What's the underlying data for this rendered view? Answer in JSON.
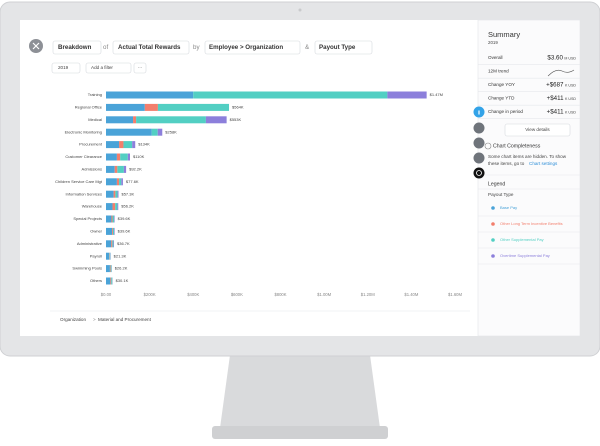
{
  "header": {
    "breakdown": "Breakdown",
    "of": "of",
    "measure": "Actual Total Rewards",
    "by": "by",
    "dimension": "Employee > Organization",
    "and": "&",
    "dimension2": "Payout Type"
  },
  "filters": {
    "year": "2019",
    "add": "Add a filter",
    "more": "···"
  },
  "chart_data": {
    "type": "stacked-bar-horizontal",
    "categories": [
      "Training",
      "Regional Office",
      "Medical",
      "Electronic Monitoring",
      "Procurement",
      "Customer Clearance",
      "Admissions",
      "Children Service Care Mgt",
      "Information Services",
      "Warehouse",
      "Special Projects",
      "Owner",
      "Administrative",
      "Payroll",
      "Swimming Pools",
      "Others"
    ],
    "series": [
      {
        "name": "Base Pay",
        "color": "#4aa3d8",
        "values": [
          400000,
          178000,
          124000,
          210000,
          60000,
          50000,
          40000,
          50000,
          35000,
          30000,
          25000,
          28000,
          24000,
          15000,
          18000,
          20000
        ]
      },
      {
        "name": "Other Long Term Incentive Benefits",
        "color": "#f27e6c",
        "values": [
          0,
          60000,
          14000,
          0,
          20000,
          15000,
          12000,
          10000,
          8000,
          12000,
          5000,
          4000,
          5000,
          2000,
          3000,
          4000
        ]
      },
      {
        "name": "Other Supplemental Pay",
        "color": "#52cfc3",
        "values": [
          890000,
          326000,
          320000,
          27000,
          40000,
          35000,
          30000,
          10000,
          10000,
          10000,
          7000,
          5000,
          5000,
          3000,
          4000,
          5000
        ]
      },
      {
        "name": "Overtime Supplemental Pay",
        "color": "#8c7fdb",
        "values": [
          180000,
          0,
          95000,
          21000,
          14000,
          10000,
          10200,
          7600,
          4300,
          4200,
          2600,
          2600,
          2700,
          1300,
          1200,
          1100
        ]
      }
    ],
    "value_labels": [
      "$1.47M",
      "$564K",
      "$553K",
      "$258K",
      "$134K",
      "$110K",
      "$92.2K",
      "$77.6K",
      "$57.3K",
      "$56.2K",
      "$39.6K",
      "$39.6K",
      "$36.7K",
      "$21.3K",
      "$26.2K",
      "$30.1K"
    ],
    "xlim": [
      0,
      1600000
    ],
    "xticks": [
      {
        "value": 0,
        "label": "$0.00"
      },
      {
        "value": 200000,
        "label": "$200K"
      },
      {
        "value": 400000,
        "label": "$400K"
      },
      {
        "value": 600000,
        "label": "$600K"
      },
      {
        "value": 800000,
        "label": "$800K"
      },
      {
        "value": 1000000,
        "label": "$1.00M"
      },
      {
        "value": 1200000,
        "label": "$1.20M"
      },
      {
        "value": 1400000,
        "label": "$1.40M"
      },
      {
        "value": 1600000,
        "label": "$1.60M"
      }
    ],
    "grid": false
  },
  "footer_breadcrumb": {
    "root": "Organization",
    "sep": ">",
    "leaf": "Material and Procurement"
  },
  "summary": {
    "title": "Summary",
    "period": "2019",
    "rows": [
      {
        "label": "Overall",
        "value": "$3.60",
        "unit": "M USD"
      },
      {
        "label": "12M trend"
      },
      {
        "label": "Change YOY",
        "value": "+$687",
        "unit": "K USD"
      },
      {
        "label": "Change YTD",
        "value": "+$411",
        "unit": "K USD"
      },
      {
        "label": "Change in period",
        "value": "+$411",
        "unit": "K USD"
      }
    ],
    "button": "View details"
  },
  "completeness": {
    "title": "Chart Completeness",
    "lines": [
      "Some chart items are hidden. To show",
      "these items, go to"
    ],
    "link": "Chart settings"
  },
  "legend": {
    "title": "Legend",
    "group": "Payout Type"
  }
}
